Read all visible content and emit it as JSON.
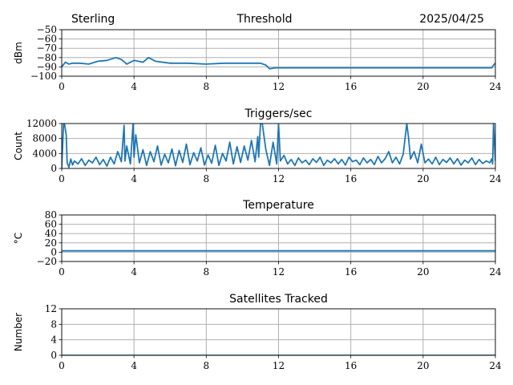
{
  "header": {
    "left": "Sterling",
    "center": "Threshold",
    "right": "2025/04/25"
  },
  "colors": {
    "line": "#1f77b4",
    "grid": "#b0b0b0",
    "axis": "#000000"
  },
  "chart_data": [
    {
      "type": "line",
      "title": "",
      "ylabel": "dBm",
      "xlim": [
        0,
        24
      ],
      "ylim": [
        -100,
        -50
      ],
      "xticks": [
        "0",
        "4",
        "8",
        "12",
        "16",
        "20",
        "24"
      ],
      "yticks": [
        "−50",
        "−60",
        "−70",
        "−80",
        "−90",
        "−100"
      ],
      "ytick_values": [
        -50,
        -60,
        -70,
        -80,
        -90,
        -100
      ],
      "series": [
        {
          "name": "threshold",
          "x": [
            0,
            0.2,
            0.4,
            0.6,
            1,
            1.5,
            2,
            2.5,
            3,
            3.3,
            3.6,
            4,
            4.5,
            4.8,
            5.2,
            6,
            7,
            8,
            9,
            10,
            11,
            11.3,
            11.5,
            11.8,
            12.2,
            13,
            14,
            16,
            18,
            20,
            22,
            23.8,
            23.9,
            24
          ],
          "y": [
            -90,
            -85,
            -87,
            -86,
            -86,
            -87,
            -84,
            -83,
            -80,
            -82,
            -87,
            -83,
            -85,
            -80,
            -84,
            -86,
            -86,
            -87,
            -86,
            -86,
            -86,
            -88,
            -92,
            -91,
            -91,
            -91,
            -91,
            -91,
            -91,
            -91,
            -91,
            -91,
            -88,
            -86
          ]
        }
      ]
    },
    {
      "type": "line",
      "title": "Triggers/sec",
      "ylabel": "Count",
      "xlim": [
        0,
        24
      ],
      "ylim": [
        0,
        12000
      ],
      "xticks": [
        "0",
        "4",
        "8",
        "12",
        "16",
        "20",
        "24"
      ],
      "yticks": [
        "12000",
        "8000",
        "4000",
        "0"
      ],
      "ytick_values": [
        12000,
        8000,
        4000,
        0
      ],
      "series": [
        {
          "name": "triggers",
          "x": [
            0,
            0.1,
            0.15,
            0.25,
            0.3,
            0.4,
            0.5,
            0.6,
            0.7,
            0.9,
            1.1,
            1.3,
            1.5,
            1.7,
            1.9,
            2.1,
            2.3,
            2.5,
            2.7,
            2.9,
            3.1,
            3.3,
            3.45,
            3.5,
            3.6,
            3.8,
            3.95,
            4.0,
            4.1,
            4.3,
            4.5,
            4.7,
            4.9,
            5.1,
            5.3,
            5.5,
            5.7,
            5.9,
            6.1,
            6.3,
            6.5,
            6.7,
            6.9,
            7.1,
            7.3,
            7.5,
            7.7,
            7.9,
            8.1,
            8.3,
            8.5,
            8.7,
            8.9,
            9.1,
            9.3,
            9.5,
            9.7,
            9.9,
            10.1,
            10.3,
            10.5,
            10.7,
            10.85,
            10.9,
            11.0,
            11.1,
            11.3,
            11.5,
            11.7,
            11.9,
            12.0,
            12.1,
            12.3,
            12.5,
            12.7,
            12.9,
            13.1,
            13.3,
            13.5,
            13.7,
            13.9,
            14.1,
            14.3,
            14.5,
            14.7,
            14.9,
            15.1,
            15.3,
            15.5,
            15.7,
            15.9,
            16.1,
            16.3,
            16.5,
            16.7,
            16.9,
            17.1,
            17.3,
            17.5,
            17.7,
            17.9,
            18.1,
            18.3,
            18.5,
            18.7,
            18.9,
            19.1,
            19.2,
            19.3,
            19.5,
            19.7,
            19.9,
            20.1,
            20.3,
            20.5,
            20.7,
            20.9,
            21.1,
            21.3,
            21.5,
            21.7,
            21.9,
            22.1,
            22.3,
            22.5,
            22.7,
            22.9,
            23.1,
            23.3,
            23.5,
            23.7,
            23.8,
            23.85,
            23.9,
            24
          ],
          "y": [
            200,
            12000,
            12000,
            9000,
            1500,
            300,
            2500,
            900,
            2000,
            1200,
            2600,
            800,
            2200,
            1500,
            3000,
            1000,
            2400,
            600,
            3000,
            1200,
            4500,
            1800,
            11500,
            2000,
            6000,
            1200,
            12000,
            3000,
            9000,
            1500,
            5000,
            800,
            4500,
            1800,
            6000,
            900,
            3800,
            1500,
            5200,
            700,
            4800,
            1600,
            6500,
            1000,
            4200,
            2000,
            5500,
            900,
            3600,
            1400,
            6200,
            800,
            4000,
            2000,
            7000,
            1200,
            5800,
            1600,
            6000,
            2200,
            7500,
            1800,
            8500,
            3000,
            12000,
            12000,
            5000,
            800,
            7000,
            1200,
            12000,
            2000,
            3500,
            1200,
            2400,
            800,
            2800,
            1500,
            2200,
            1000,
            2600,
            1600,
            3000,
            800,
            2200,
            1500,
            2600,
            1200,
            2400,
            900,
            3000,
            1800,
            2200,
            1000,
            2800,
            1500,
            2400,
            1000,
            3200,
            1500,
            2600,
            4500,
            1500,
            3000,
            1200,
            3800,
            12000,
            8000,
            2500,
            4500,
            1500,
            6500,
            1500,
            2500,
            1200,
            3000,
            1000,
            2400,
            1600,
            2800,
            1200,
            2600,
            900,
            2200,
            1500,
            2800,
            1000,
            2400,
            1300,
            2000,
            1500,
            2600,
            1200,
            12000,
            2000
          ]
        }
      ]
    },
    {
      "type": "line",
      "title": "Temperature",
      "ylabel": "°C",
      "xlim": [
        0,
        24
      ],
      "ylim": [
        -20,
        80
      ],
      "xticks": [
        "0",
        "4",
        "8",
        "12",
        "16",
        "20",
        "24"
      ],
      "yticks": [
        "80",
        "60",
        "40",
        "20",
        "0",
        "−20"
      ],
      "ytick_values": [
        80,
        60,
        40,
        20,
        0,
        -20
      ],
      "series": [
        {
          "name": "temperature",
          "x": [
            0,
            24
          ],
          "y": [
            3,
            3
          ]
        }
      ]
    },
    {
      "type": "line",
      "title": "Satellites Tracked",
      "ylabel": "Number",
      "xlim": [
        0,
        24
      ],
      "ylim": [
        0,
        12
      ],
      "xticks": [
        "0",
        "4",
        "8",
        "12",
        "16",
        "20",
        "24"
      ],
      "yticks": [
        "12",
        "8",
        "4",
        "0"
      ],
      "ytick_values": [
        12,
        8,
        4,
        0
      ],
      "series": [
        {
          "name": "satellites",
          "x": [
            0,
            24
          ],
          "y": [
            0,
            0
          ]
        }
      ]
    }
  ]
}
